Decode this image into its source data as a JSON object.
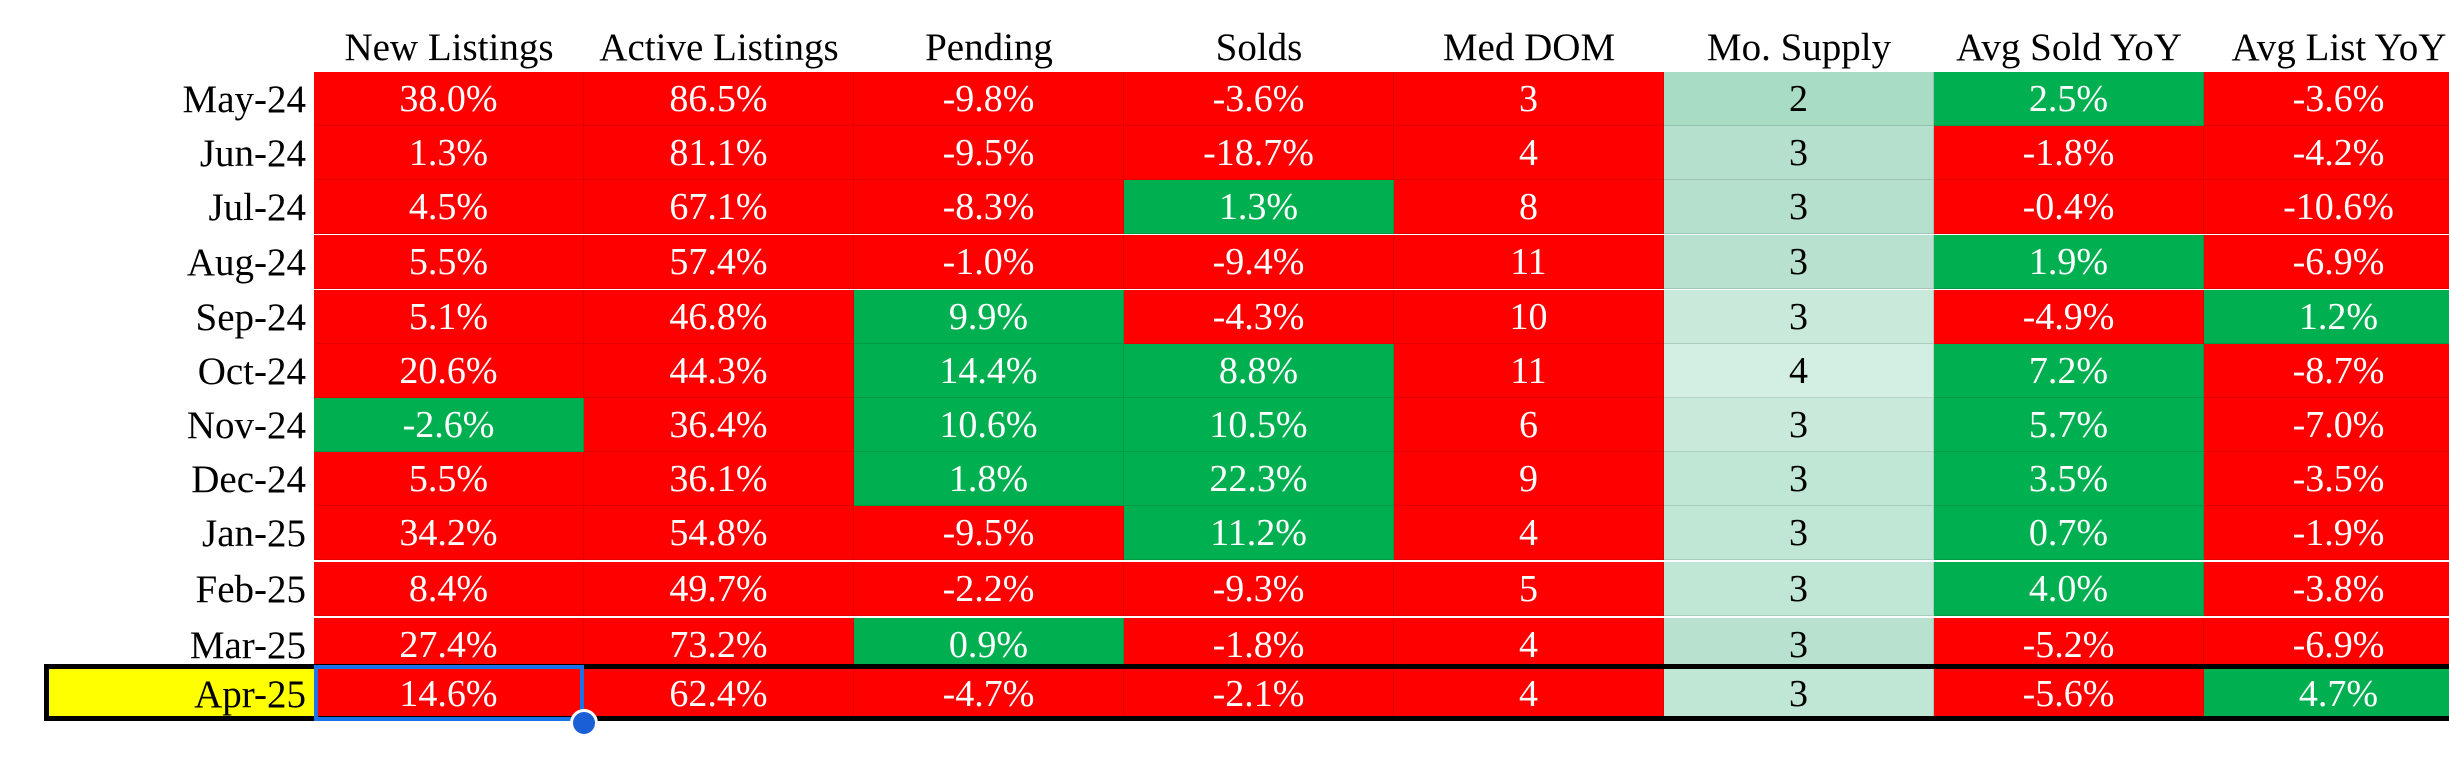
{
  "columns": [
    "New Listings",
    "Active Listings",
    "Pending",
    "Solds",
    "Med DOM",
    "Mo. Supply",
    "Avg Sold YoY",
    "Avg List YoY"
  ],
  "colors": {
    "red": "#ff0000",
    "green": "#00b050",
    "highlight_yellow": "#ffff00",
    "selection_blue": "#1a73e8",
    "supply_shades": [
      "#a9dcc5",
      "#b4e0cd",
      "#c0e6d5",
      "#c9e9da",
      "#d3eee2"
    ]
  },
  "rows": [
    {
      "label": "May-24",
      "highlight": false,
      "cells": [
        {
          "value": "38.0%",
          "color": "red"
        },
        {
          "value": "86.5%",
          "color": "red"
        },
        {
          "value": "-9.8%",
          "color": "red"
        },
        {
          "value": "-3.6%",
          "color": "red"
        },
        {
          "value": "3",
          "color": "red"
        },
        {
          "value": "2",
          "color": "#a9dcc5"
        },
        {
          "value": "2.5%",
          "color": "green"
        },
        {
          "value": "-3.6%",
          "color": "red"
        }
      ]
    },
    {
      "label": "Jun-24",
      "highlight": false,
      "cells": [
        {
          "value": "1.3%",
          "color": "red"
        },
        {
          "value": "81.1%",
          "color": "red"
        },
        {
          "value": "-9.5%",
          "color": "red"
        },
        {
          "value": "-18.7%",
          "color": "red"
        },
        {
          "value": "4",
          "color": "red"
        },
        {
          "value": "3",
          "color": "#b4e0cd"
        },
        {
          "value": "-1.8%",
          "color": "red"
        },
        {
          "value": "-4.2%",
          "color": "red"
        }
      ]
    },
    {
      "label": "Jul-24",
      "highlight": false,
      "cells": [
        {
          "value": "4.5%",
          "color": "red"
        },
        {
          "value": "67.1%",
          "color": "red"
        },
        {
          "value": "-8.3%",
          "color": "red"
        },
        {
          "value": "1.3%",
          "color": "green"
        },
        {
          "value": "8",
          "color": "red"
        },
        {
          "value": "3",
          "color": "#b4e0cd"
        },
        {
          "value": "-0.4%",
          "color": "red"
        },
        {
          "value": "-10.6%",
          "color": "red"
        }
      ]
    },
    {
      "label": "Aug-24",
      "highlight": false,
      "cells": [
        {
          "value": "5.5%",
          "color": "red"
        },
        {
          "value": "57.4%",
          "color": "red"
        },
        {
          "value": "-1.0%",
          "color": "red"
        },
        {
          "value": "-9.4%",
          "color": "red"
        },
        {
          "value": "11",
          "color": "red"
        },
        {
          "value": "3",
          "color": "#b8e2cf"
        },
        {
          "value": "1.9%",
          "color": "green"
        },
        {
          "value": "-6.9%",
          "color": "red"
        }
      ]
    },
    {
      "label": "Sep-24",
      "highlight": false,
      "cells": [
        {
          "value": "5.1%",
          "color": "red"
        },
        {
          "value": "46.8%",
          "color": "red"
        },
        {
          "value": "9.9%",
          "color": "green"
        },
        {
          "value": "-4.3%",
          "color": "red"
        },
        {
          "value": "10",
          "color": "red"
        },
        {
          "value": "3",
          "color": "#c9e9da"
        },
        {
          "value": "-4.9%",
          "color": "red"
        },
        {
          "value": "1.2%",
          "color": "green"
        }
      ]
    },
    {
      "label": "Oct-24",
      "highlight": false,
      "cells": [
        {
          "value": "20.6%",
          "color": "red"
        },
        {
          "value": "44.3%",
          "color": "red"
        },
        {
          "value": "14.4%",
          "color": "green"
        },
        {
          "value": "8.8%",
          "color": "green"
        },
        {
          "value": "11",
          "color": "red"
        },
        {
          "value": "4",
          "color": "#d3eee2"
        },
        {
          "value": "7.2%",
          "color": "green"
        },
        {
          "value": "-8.7%",
          "color": "red"
        }
      ]
    },
    {
      "label": "Nov-24",
      "highlight": false,
      "cells": [
        {
          "value": "-2.6%",
          "color": "green"
        },
        {
          "value": "36.4%",
          "color": "red"
        },
        {
          "value": "10.6%",
          "color": "green"
        },
        {
          "value": "10.5%",
          "color": "green"
        },
        {
          "value": "6",
          "color": "red"
        },
        {
          "value": "3",
          "color": "#c9e9da"
        },
        {
          "value": "5.7%",
          "color": "green"
        },
        {
          "value": "-7.0%",
          "color": "red"
        }
      ]
    },
    {
      "label": "Dec-24",
      "highlight": false,
      "cells": [
        {
          "value": "5.5%",
          "color": "red"
        },
        {
          "value": "36.1%",
          "color": "red"
        },
        {
          "value": "1.8%",
          "color": "green"
        },
        {
          "value": "22.3%",
          "color": "green"
        },
        {
          "value": "9",
          "color": "red"
        },
        {
          "value": "3",
          "color": "#c0e6d5"
        },
        {
          "value": "3.5%",
          "color": "green"
        },
        {
          "value": "-3.5%",
          "color": "red"
        }
      ]
    },
    {
      "label": "Jan-25",
      "highlight": false,
      "cells": [
        {
          "value": "34.2%",
          "color": "red"
        },
        {
          "value": "54.8%",
          "color": "red"
        },
        {
          "value": "-9.5%",
          "color": "red"
        },
        {
          "value": "11.2%",
          "color": "green"
        },
        {
          "value": "4",
          "color": "red"
        },
        {
          "value": "3",
          "color": "#c0e6d5"
        },
        {
          "value": "0.7%",
          "color": "green"
        },
        {
          "value": "-1.9%",
          "color": "red"
        }
      ]
    },
    {
      "label": "Feb-25",
      "highlight": false,
      "cells": [
        {
          "value": "8.4%",
          "color": "red"
        },
        {
          "value": "49.7%",
          "color": "red"
        },
        {
          "value": "-2.2%",
          "color": "red"
        },
        {
          "value": "-9.3%",
          "color": "red"
        },
        {
          "value": "5",
          "color": "red"
        },
        {
          "value": "3",
          "color": "#c0e6d5"
        },
        {
          "value": "4.0%",
          "color": "green"
        },
        {
          "value": "-3.8%",
          "color": "red"
        }
      ]
    },
    {
      "label": "Mar-25",
      "highlight": false,
      "cells": [
        {
          "value": "27.4%",
          "color": "red"
        },
        {
          "value": "73.2%",
          "color": "red"
        },
        {
          "value": "0.9%",
          "color": "green"
        },
        {
          "value": "-1.8%",
          "color": "red"
        },
        {
          "value": "4",
          "color": "red"
        },
        {
          "value": "3",
          "color": "#b8e2cf"
        },
        {
          "value": "-5.2%",
          "color": "red"
        },
        {
          "value": "-6.9%",
          "color": "red"
        }
      ]
    },
    {
      "label": "Apr-25",
      "highlight": true,
      "cells": [
        {
          "value": "14.6%",
          "color": "red"
        },
        {
          "value": "62.4%",
          "color": "red"
        },
        {
          "value": "-4.7%",
          "color": "red"
        },
        {
          "value": "-2.1%",
          "color": "red"
        },
        {
          "value": "4",
          "color": "red"
        },
        {
          "value": "3",
          "color": "#c0e6d5"
        },
        {
          "value": "-5.6%",
          "color": "red"
        },
        {
          "value": "4.7%",
          "color": "green"
        }
      ]
    }
  ],
  "selected_cell": {
    "row": "Apr-25",
    "column": "New Listings",
    "value": "14.6%"
  }
}
